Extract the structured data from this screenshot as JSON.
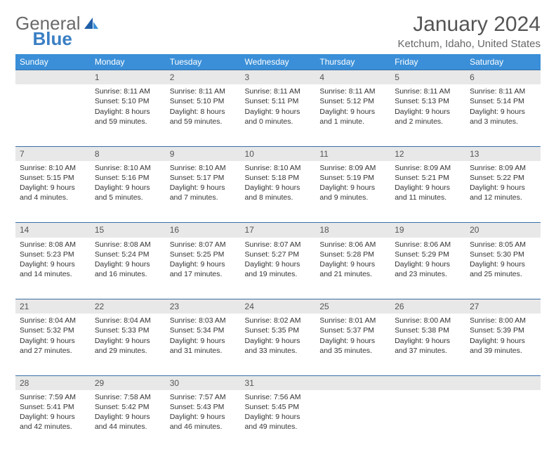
{
  "logo": {
    "part1": "General",
    "part2": "Blue"
  },
  "title": "January 2024",
  "location": "Ketchum, Idaho, United States",
  "colors": {
    "header_bg": "#3a8fd8",
    "header_text": "#ffffff",
    "daynum_bg": "#e8e8e8",
    "daynum_border": "#3a6fa8",
    "body_text": "#333333",
    "title_text": "#555555",
    "logo_gray": "#6a6a6a",
    "logo_blue": "#3a7fc4"
  },
  "day_headers": [
    "Sunday",
    "Monday",
    "Tuesday",
    "Wednesday",
    "Thursday",
    "Friday",
    "Saturday"
  ],
  "weeks": [
    [
      null,
      {
        "n": "1",
        "sr": "8:11 AM",
        "ss": "5:10 PM",
        "dl": "8 hours and 59 minutes."
      },
      {
        "n": "2",
        "sr": "8:11 AM",
        "ss": "5:10 PM",
        "dl": "8 hours and 59 minutes."
      },
      {
        "n": "3",
        "sr": "8:11 AM",
        "ss": "5:11 PM",
        "dl": "9 hours and 0 minutes."
      },
      {
        "n": "4",
        "sr": "8:11 AM",
        "ss": "5:12 PM",
        "dl": "9 hours and 1 minute."
      },
      {
        "n": "5",
        "sr": "8:11 AM",
        "ss": "5:13 PM",
        "dl": "9 hours and 2 minutes."
      },
      {
        "n": "6",
        "sr": "8:11 AM",
        "ss": "5:14 PM",
        "dl": "9 hours and 3 minutes."
      }
    ],
    [
      {
        "n": "7",
        "sr": "8:10 AM",
        "ss": "5:15 PM",
        "dl": "9 hours and 4 minutes."
      },
      {
        "n": "8",
        "sr": "8:10 AM",
        "ss": "5:16 PM",
        "dl": "9 hours and 5 minutes."
      },
      {
        "n": "9",
        "sr": "8:10 AM",
        "ss": "5:17 PM",
        "dl": "9 hours and 7 minutes."
      },
      {
        "n": "10",
        "sr": "8:10 AM",
        "ss": "5:18 PM",
        "dl": "9 hours and 8 minutes."
      },
      {
        "n": "11",
        "sr": "8:09 AM",
        "ss": "5:19 PM",
        "dl": "9 hours and 9 minutes."
      },
      {
        "n": "12",
        "sr": "8:09 AM",
        "ss": "5:21 PM",
        "dl": "9 hours and 11 minutes."
      },
      {
        "n": "13",
        "sr": "8:09 AM",
        "ss": "5:22 PM",
        "dl": "9 hours and 12 minutes."
      }
    ],
    [
      {
        "n": "14",
        "sr": "8:08 AM",
        "ss": "5:23 PM",
        "dl": "9 hours and 14 minutes."
      },
      {
        "n": "15",
        "sr": "8:08 AM",
        "ss": "5:24 PM",
        "dl": "9 hours and 16 minutes."
      },
      {
        "n": "16",
        "sr": "8:07 AM",
        "ss": "5:25 PM",
        "dl": "9 hours and 17 minutes."
      },
      {
        "n": "17",
        "sr": "8:07 AM",
        "ss": "5:27 PM",
        "dl": "9 hours and 19 minutes."
      },
      {
        "n": "18",
        "sr": "8:06 AM",
        "ss": "5:28 PM",
        "dl": "9 hours and 21 minutes."
      },
      {
        "n": "19",
        "sr": "8:06 AM",
        "ss": "5:29 PM",
        "dl": "9 hours and 23 minutes."
      },
      {
        "n": "20",
        "sr": "8:05 AM",
        "ss": "5:30 PM",
        "dl": "9 hours and 25 minutes."
      }
    ],
    [
      {
        "n": "21",
        "sr": "8:04 AM",
        "ss": "5:32 PM",
        "dl": "9 hours and 27 minutes."
      },
      {
        "n": "22",
        "sr": "8:04 AM",
        "ss": "5:33 PM",
        "dl": "9 hours and 29 minutes."
      },
      {
        "n": "23",
        "sr": "8:03 AM",
        "ss": "5:34 PM",
        "dl": "9 hours and 31 minutes."
      },
      {
        "n": "24",
        "sr": "8:02 AM",
        "ss": "5:35 PM",
        "dl": "9 hours and 33 minutes."
      },
      {
        "n": "25",
        "sr": "8:01 AM",
        "ss": "5:37 PM",
        "dl": "9 hours and 35 minutes."
      },
      {
        "n": "26",
        "sr": "8:00 AM",
        "ss": "5:38 PM",
        "dl": "9 hours and 37 minutes."
      },
      {
        "n": "27",
        "sr": "8:00 AM",
        "ss": "5:39 PM",
        "dl": "9 hours and 39 minutes."
      }
    ],
    [
      {
        "n": "28",
        "sr": "7:59 AM",
        "ss": "5:41 PM",
        "dl": "9 hours and 42 minutes."
      },
      {
        "n": "29",
        "sr": "7:58 AM",
        "ss": "5:42 PM",
        "dl": "9 hours and 44 minutes."
      },
      {
        "n": "30",
        "sr": "7:57 AM",
        "ss": "5:43 PM",
        "dl": "9 hours and 46 minutes."
      },
      {
        "n": "31",
        "sr": "7:56 AM",
        "ss": "5:45 PM",
        "dl": "9 hours and 49 minutes."
      },
      null,
      null,
      null
    ]
  ],
  "labels": {
    "sunrise": "Sunrise:",
    "sunset": "Sunset:",
    "daylight": "Daylight:"
  }
}
